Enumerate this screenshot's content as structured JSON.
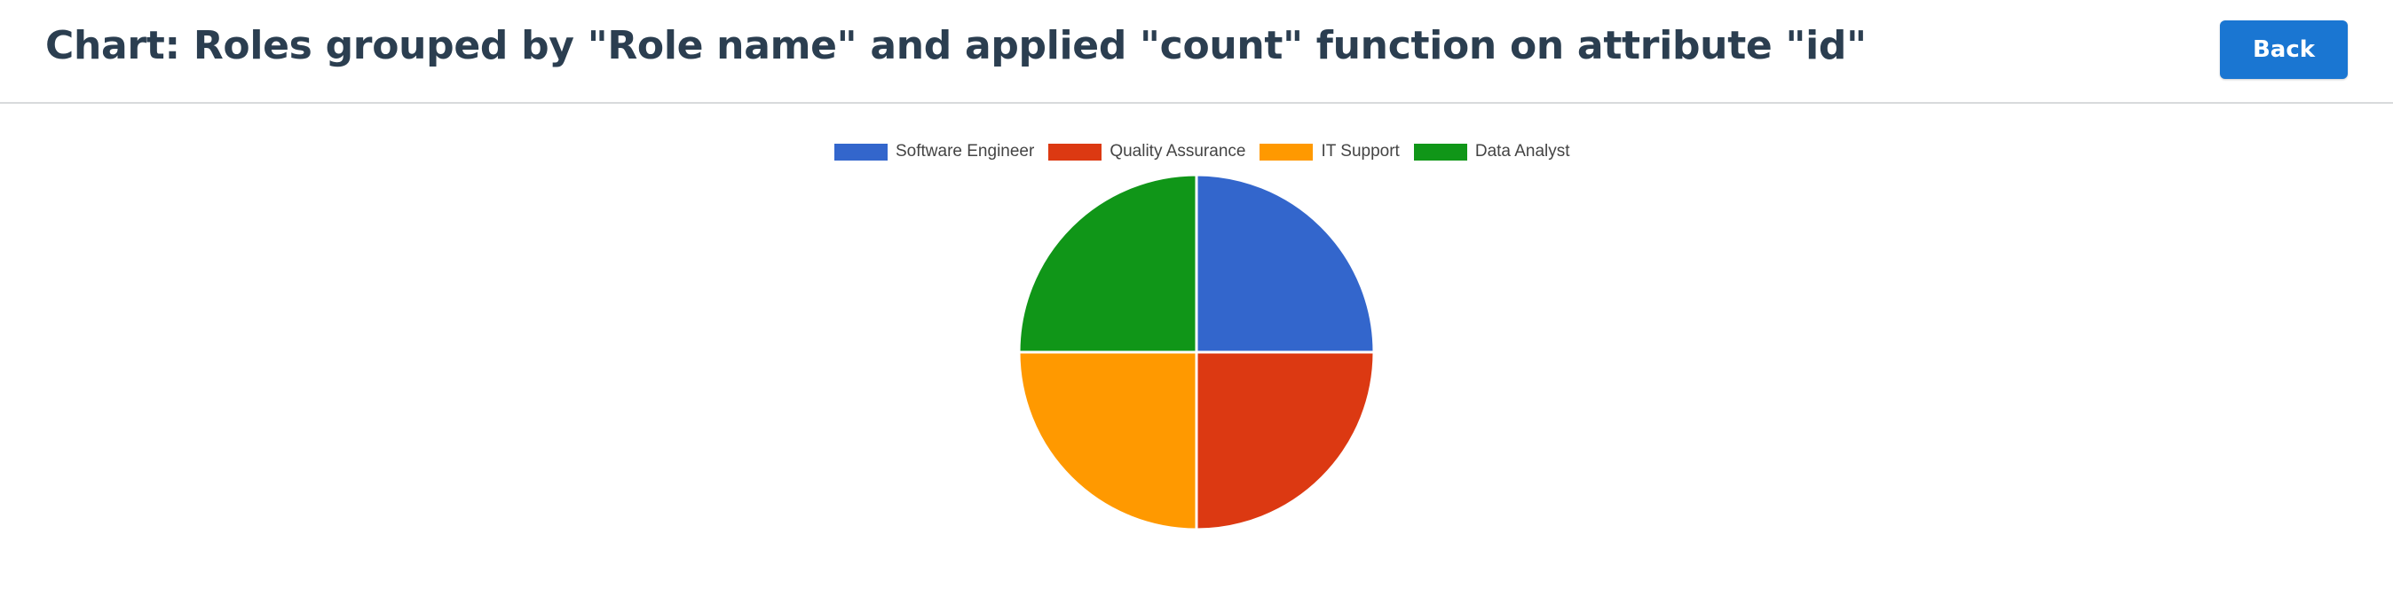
{
  "header": {
    "title": "Chart: Roles grouped by \"Role name\" and applied \"count\" function on attribute \"id\"",
    "back_label": "Back"
  },
  "colors": {
    "accent": "#1a76d2",
    "title_text": "#2b3e50"
  },
  "chart_data": {
    "type": "pie",
    "title": "",
    "legend_position": "top",
    "categories": [
      "Software Engineer",
      "Quality Assurance",
      "IT Support",
      "Data Analyst"
    ],
    "values": [
      1,
      1,
      1,
      1
    ],
    "colors": [
      "#3366cc",
      "#dc3912",
      "#ff9900",
      "#109618"
    ]
  }
}
